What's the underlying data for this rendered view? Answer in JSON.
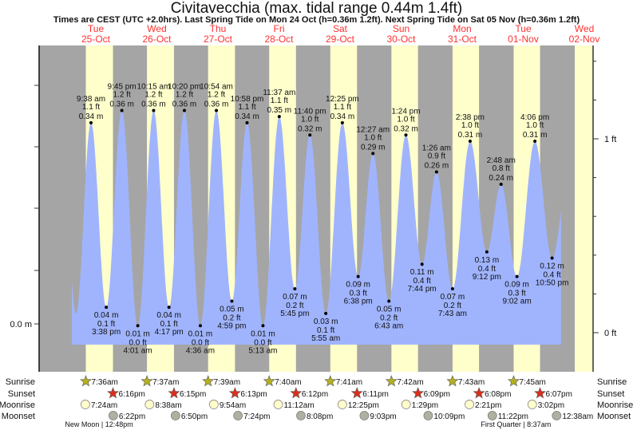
{
  "title": "Civitavecchia (max. tidal range 0.44m 1.4ft)",
  "subtitle": "Times are CEST (UTC +2.0hrs). Last Spring Tide on Mon 24 Oct (h=0.36m 1.2ft). Next Spring Tide on Sat 05 Nov (h=0.36m 1.2ft)",
  "colors": {
    "night": "#a5a5a5",
    "day": "#ffffcc",
    "water": "#a0b4fd",
    "day_label": "#ff3030",
    "sunrise": "#b5b020",
    "sunset": "#d8301c",
    "moonrise": "#ffffcc",
    "moonset": "#b0b0a0"
  },
  "chart_data": {
    "type": "area",
    "title": "Civitavecchia (max. tidal range 0.44m 1.4ft)",
    "left_axis": {
      "label": "0.0 m",
      "unit": "m"
    },
    "right_axis": {
      "labels": [
        "1 ft",
        "0 ft"
      ],
      "values_ft": [
        1,
        0
      ]
    },
    "days": [
      {
        "dow": "Tue",
        "date": "25-Oct"
      },
      {
        "dow": "Wed",
        "date": "26-Oct"
      },
      {
        "dow": "Thu",
        "date": "27-Oct"
      },
      {
        "dow": "Fri",
        "date": "28-Oct"
      },
      {
        "dow": "Sat",
        "date": "29-Oct"
      },
      {
        "dow": "Sun",
        "date": "30-Oct"
      },
      {
        "dow": "Mon",
        "date": "31-Oct"
      },
      {
        "dow": "Tue",
        "date": "01-Nov"
      },
      {
        "dow": "Wed",
        "date": "02-Nov"
      }
    ],
    "tides": [
      {
        "day": 0,
        "time": "9:38 am",
        "type": "high",
        "m": 0.34,
        "m_label": "0.34 m",
        "ft_label": "1.1 ft"
      },
      {
        "day": 0,
        "time": "3:38 pm",
        "type": "low",
        "m": 0.04,
        "m_label": "0.04 m",
        "ft_label": "0.1 ft"
      },
      {
        "day": 0,
        "time": "9:45 pm",
        "type": "high",
        "m": 0.36,
        "m_label": "0.36 m",
        "ft_label": "1.2 ft"
      },
      {
        "day": 1,
        "time": "4:01 am",
        "type": "low",
        "m": 0.01,
        "m_label": "0.01 m",
        "ft_label": "0.0 ft"
      },
      {
        "day": 1,
        "time": "10:15 am",
        "type": "high",
        "m": 0.36,
        "m_label": "0.36 m",
        "ft_label": "1.2 ft"
      },
      {
        "day": 1,
        "time": "4:17 pm",
        "type": "low",
        "m": 0.04,
        "m_label": "0.04 m",
        "ft_label": "0.1 ft"
      },
      {
        "day": 1,
        "time": "10:20 pm",
        "type": "high",
        "m": 0.36,
        "m_label": "0.36 m",
        "ft_label": "1.2 ft"
      },
      {
        "day": 2,
        "time": "4:36 am",
        "type": "low",
        "m": 0.01,
        "m_label": "0.01 m",
        "ft_label": "0.0 ft"
      },
      {
        "day": 2,
        "time": "10:54 am",
        "type": "high",
        "m": 0.36,
        "m_label": "0.36 m",
        "ft_label": "1.2 ft"
      },
      {
        "day": 2,
        "time": "4:59 pm",
        "type": "low",
        "m": 0.05,
        "m_label": "0.05 m",
        "ft_label": "0.2 ft"
      },
      {
        "day": 2,
        "time": "10:58 pm",
        "type": "high",
        "m": 0.34,
        "m_label": "0.34 m",
        "ft_label": "1.1 ft"
      },
      {
        "day": 3,
        "time": "5:13 am",
        "type": "low",
        "m": 0.01,
        "m_label": "0.01 m",
        "ft_label": "0.0 ft"
      },
      {
        "day": 3,
        "time": "11:37 am",
        "type": "high",
        "m": 0.35,
        "m_label": "0.35 m",
        "ft_label": "1.1 ft"
      },
      {
        "day": 3,
        "time": "5:45 pm",
        "type": "low",
        "m": 0.07,
        "m_label": "0.07 m",
        "ft_label": "0.2 ft"
      },
      {
        "day": 3,
        "time": "11:40 pm",
        "type": "high",
        "m": 0.32,
        "m_label": "0.32 m",
        "ft_label": "1.0 ft"
      },
      {
        "day": 4,
        "time": "5:55 am",
        "type": "low",
        "m": 0.03,
        "m_label": "0.03 m",
        "ft_label": "0.1 ft"
      },
      {
        "day": 4,
        "time": "12:25 pm",
        "type": "high",
        "m": 0.34,
        "m_label": "0.34 m",
        "ft_label": "1.1 ft"
      },
      {
        "day": 4,
        "time": "6:38 pm",
        "type": "low",
        "m": 0.09,
        "m_label": "0.09 m",
        "ft_label": "0.3 ft"
      },
      {
        "day": 5,
        "time": "12:27 am",
        "type": "high",
        "m": 0.29,
        "m_label": "0.29 m",
        "ft_label": "1.0 ft"
      },
      {
        "day": 5,
        "time": "6:43 am",
        "type": "low",
        "m": 0.05,
        "m_label": "0.05 m",
        "ft_label": "0.2 ft"
      },
      {
        "day": 5,
        "time": "1:24 pm",
        "type": "high",
        "m": 0.32,
        "m_label": "0.32 m",
        "ft_label": "1.0 ft"
      },
      {
        "day": 5,
        "time": "7:44 pm",
        "type": "low",
        "m": 0.11,
        "m_label": "0.11 m",
        "ft_label": "0.4 ft"
      },
      {
        "day": 6,
        "time": "1:26 am",
        "type": "high",
        "m": 0.26,
        "m_label": "0.26 m",
        "ft_label": "0.9 ft"
      },
      {
        "day": 6,
        "time": "7:43 am",
        "type": "low",
        "m": 0.07,
        "m_label": "0.07 m",
        "ft_label": "0.2 ft"
      },
      {
        "day": 6,
        "time": "2:38 pm",
        "type": "high",
        "m": 0.31,
        "m_label": "0.31 m",
        "ft_label": "1.0 ft"
      },
      {
        "day": 6,
        "time": "9:12 pm",
        "type": "low",
        "m": 0.13,
        "m_label": "0.13 m",
        "ft_label": "0.4 ft"
      },
      {
        "day": 7,
        "time": "2:48 am",
        "type": "high",
        "m": 0.24,
        "m_label": "0.24 m",
        "ft_label": "0.8 ft"
      },
      {
        "day": 7,
        "time": "9:02 am",
        "type": "low",
        "m": 0.09,
        "m_label": "0.09 m",
        "ft_label": "0.3 ft"
      },
      {
        "day": 7,
        "time": "4:06 pm",
        "type": "high",
        "m": 0.31,
        "m_label": "0.31 m",
        "ft_label": "1.0 ft"
      },
      {
        "day": 7,
        "time": "10:50 pm",
        "type": "low",
        "m": 0.12,
        "m_label": "0.12 m",
        "ft_label": "0.4 ft"
      }
    ]
  },
  "astro": {
    "row_labels": {
      "sunrise": "Sunrise",
      "sunset": "Sunset",
      "moonrise": "Moonrise",
      "moonset": "Moonset"
    },
    "sunrise": [
      {
        "day": 0,
        "time": "7:36am"
      },
      {
        "day": 1,
        "time": "7:37am"
      },
      {
        "day": 2,
        "time": "7:39am"
      },
      {
        "day": 3,
        "time": "7:40am"
      },
      {
        "day": 4,
        "time": "7:41am"
      },
      {
        "day": 5,
        "time": "7:42am"
      },
      {
        "day": 6,
        "time": "7:43am"
      },
      {
        "day": 7,
        "time": "7:45am"
      }
    ],
    "sunset": [
      {
        "day": 0,
        "time": "6:16pm"
      },
      {
        "day": 1,
        "time": "6:15pm"
      },
      {
        "day": 2,
        "time": "6:13pm"
      },
      {
        "day": 3,
        "time": "6:12pm"
      },
      {
        "day": 4,
        "time": "6:11pm"
      },
      {
        "day": 5,
        "time": "6:09pm"
      },
      {
        "day": 6,
        "time": "6:08pm"
      },
      {
        "day": 7,
        "time": "6:07pm"
      }
    ],
    "moonrise": [
      {
        "day": 0,
        "time": "7:24am"
      },
      {
        "day": 1,
        "time": "8:38am"
      },
      {
        "day": 2,
        "time": "9:54am"
      },
      {
        "day": 3,
        "time": "11:12am"
      },
      {
        "day": 4,
        "time": "12:25pm"
      },
      {
        "day": 5,
        "time": "1:29pm"
      },
      {
        "day": 6,
        "time": "2:21pm"
      },
      {
        "day": 7,
        "time": "3:02pm"
      }
    ],
    "moonset": [
      {
        "day": 0,
        "time": "6:22pm"
      },
      {
        "day": 1,
        "time": "6:50pm"
      },
      {
        "day": 2,
        "time": "7:24pm"
      },
      {
        "day": 3,
        "time": "8:08pm"
      },
      {
        "day": 4,
        "time": "9:03pm"
      },
      {
        "day": 5,
        "time": "10:09pm"
      },
      {
        "day": 6,
        "time": "11:22pm"
      },
      {
        "day": 8,
        "time": "12:38am"
      }
    ],
    "moon_phases": [
      {
        "day": 0,
        "time": "12:48pm",
        "label": "New Moon | 12:48pm"
      },
      {
        "day": 7,
        "time": "8:37am",
        "label": "First Quarter | 8:37am"
      }
    ]
  }
}
